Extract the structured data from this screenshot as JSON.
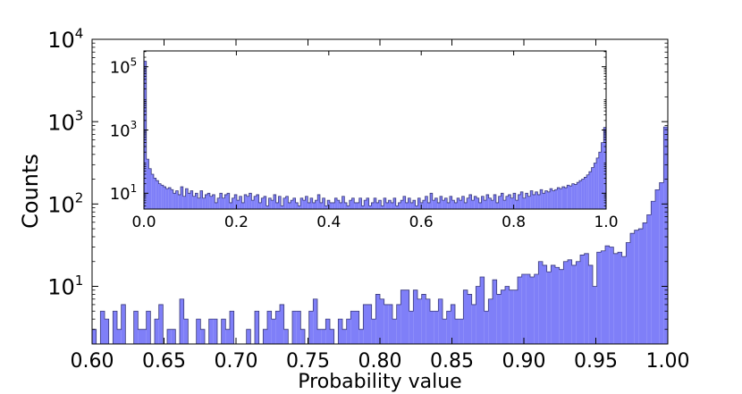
{
  "chart_data": [
    {
      "type": "bar",
      "role": "main",
      "xlabel": "Probability value",
      "ylabel": "Counts",
      "xlim": [
        0.6,
        1.0
      ],
      "ylim_log10": [
        0.3,
        4.0
      ],
      "y_scale": "log",
      "bin_width": 0.0025,
      "x_ticks": [
        0.6,
        0.65,
        0.7,
        0.75,
        0.8,
        0.85,
        0.9,
        0.95,
        1.0
      ],
      "x_tick_labels": [
        "0.60",
        "0.65",
        "0.70",
        "0.75",
        "0.80",
        "0.85",
        "0.90",
        "0.95",
        "1.00"
      ],
      "y_ticks": [
        {
          "value": 10,
          "base": "10",
          "exp": "1"
        },
        {
          "value": 100,
          "base": "10",
          "exp": "2"
        },
        {
          "value": 1000,
          "base": "10",
          "exp": "3"
        },
        {
          "value": 10000,
          "base": "10",
          "exp": "4"
        }
      ],
      "bar_color": "#7f7ff8",
      "edge_color": "#3a3a78",
      "values": [
        3,
        2,
        5,
        4,
        2,
        5,
        3,
        6,
        2,
        2,
        5,
        3,
        3,
        5,
        2,
        4,
        6,
        2,
        3,
        3,
        2,
        7,
        4,
        2,
        1,
        4,
        3,
        2,
        4,
        4,
        2,
        4,
        3,
        5,
        2,
        1,
        2,
        3,
        2,
        5,
        2,
        3,
        5,
        4,
        5,
        6,
        3,
        2,
        5,
        5,
        3,
        1,
        5,
        7,
        3,
        3,
        4,
        3,
        2,
        4,
        3,
        4,
        5,
        5,
        3,
        6,
        6,
        4,
        8,
        7,
        6,
        6,
        4,
        6,
        9,
        9,
        5,
        9,
        7,
        8,
        7,
        5,
        5,
        7,
        4,
        5,
        6,
        4,
        4,
        9,
        8,
        6,
        10,
        13,
        5,
        7,
        12,
        8,
        9,
        10,
        9,
        9,
        13,
        14,
        14,
        13,
        14,
        20,
        18,
        15,
        18,
        17,
        16,
        20,
        21,
        18,
        20,
        24,
        25,
        18,
        10,
        26,
        27,
        31,
        30,
        25,
        26,
        23,
        34,
        44,
        48,
        50,
        59,
        74,
        108,
        149,
        182,
        862
      ]
    },
    {
      "type": "bar",
      "role": "inset",
      "xlim": [
        0.0,
        1.0
      ],
      "ylim_log10": [
        0.5,
        5.5
      ],
      "y_scale": "log",
      "bin_width": 0.005,
      "x_ticks": [
        0,
        0.2,
        0.4,
        0.6,
        0.8,
        1.0
      ],
      "x_tick_labels": [
        "0.0",
        "0.2",
        "0.4",
        "0.6",
        "0.8",
        "1.0"
      ],
      "y_ticks": [
        {
          "value": 10,
          "base": "10",
          "exp": "1"
        },
        {
          "value": 1000,
          "base": "10",
          "exp": "3"
        },
        {
          "value": 100000,
          "base": "10",
          "exp": "5"
        }
      ],
      "bar_color": "#7f7ff8",
      "edge_color": "#3a3a78",
      "values": [
        150000,
        120,
        60,
        40,
        30,
        25,
        20,
        18,
        16,
        14,
        15,
        13,
        10,
        12,
        9,
        16,
        8,
        14,
        10,
        12,
        8,
        10,
        7,
        12,
        7,
        9,
        10,
        8,
        9,
        5,
        7,
        10,
        7,
        9,
        10,
        5,
        7,
        9,
        6,
        8,
        5,
        9,
        8,
        10,
        6,
        8,
        9,
        5,
        7,
        8,
        4,
        7,
        6,
        9,
        5,
        8,
        4,
        7,
        8,
        5,
        6,
        7,
        5,
        4,
        7,
        6,
        8,
        5,
        7,
        5,
        6,
        9,
        5,
        7,
        4,
        6,
        5,
        5,
        7,
        6,
        5,
        8,
        5,
        4,
        6,
        7,
        5,
        5,
        7,
        4,
        6,
        7,
        4,
        5,
        7,
        5,
        6,
        4,
        7,
        5,
        6,
        5,
        7,
        4,
        5,
        6,
        8,
        5,
        7,
        5,
        6,
        4,
        7,
        5,
        6,
        8,
        5,
        10,
        6,
        7,
        5,
        8,
        6,
        7,
        5,
        8,
        6,
        5,
        7,
        6,
        8,
        5,
        7,
        9,
        6,
        8,
        7,
        5,
        8,
        6,
        9,
        7,
        6,
        9,
        5,
        8,
        10,
        6,
        8,
        9,
        7,
        10,
        6,
        9,
        11,
        7,
        10,
        8,
        12,
        9,
        11,
        9,
        13,
        10,
        12,
        11,
        14,
        12,
        13,
        15,
        14,
        16,
        15,
        18,
        17,
        20,
        19,
        22,
        25,
        28,
        32,
        38,
        48,
        65,
        90,
        130,
        200,
        400,
        1200
      ]
    }
  ]
}
